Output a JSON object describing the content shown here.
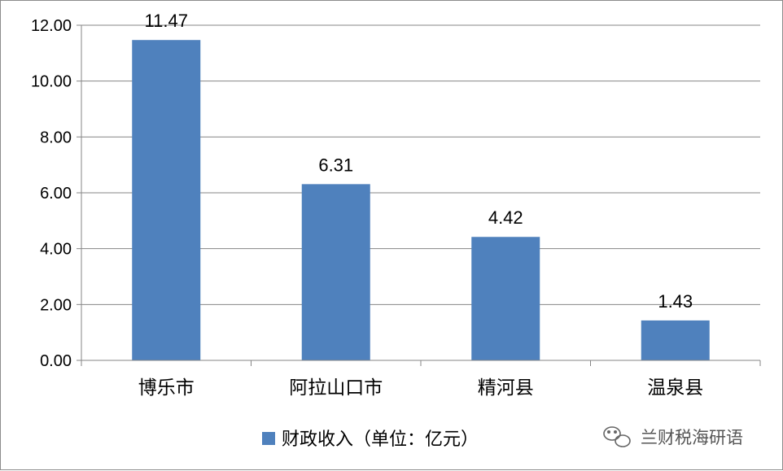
{
  "chart_data": {
    "type": "bar",
    "categories": [
      "博乐市",
      "阿拉山口市",
      "精河县",
      "温泉县"
    ],
    "series": [
      {
        "name": "财政收入（单位：亿元）",
        "values": [
          11.47,
          6.31,
          4.42,
          1.43
        ],
        "color": "#4f81bd"
      }
    ],
    "data_labels": [
      "11.47",
      "6.31",
      "4.42",
      "1.43"
    ],
    "ylim": [
      0,
      12
    ],
    "y_ticks": [
      "0.00",
      "2.00",
      "4.00",
      "6.00",
      "8.00",
      "10.00",
      "12.00"
    ],
    "grid": true,
    "legend_position": "bottom"
  },
  "watermark": {
    "text": "兰财税海研语",
    "icon": "wechat-icon"
  }
}
